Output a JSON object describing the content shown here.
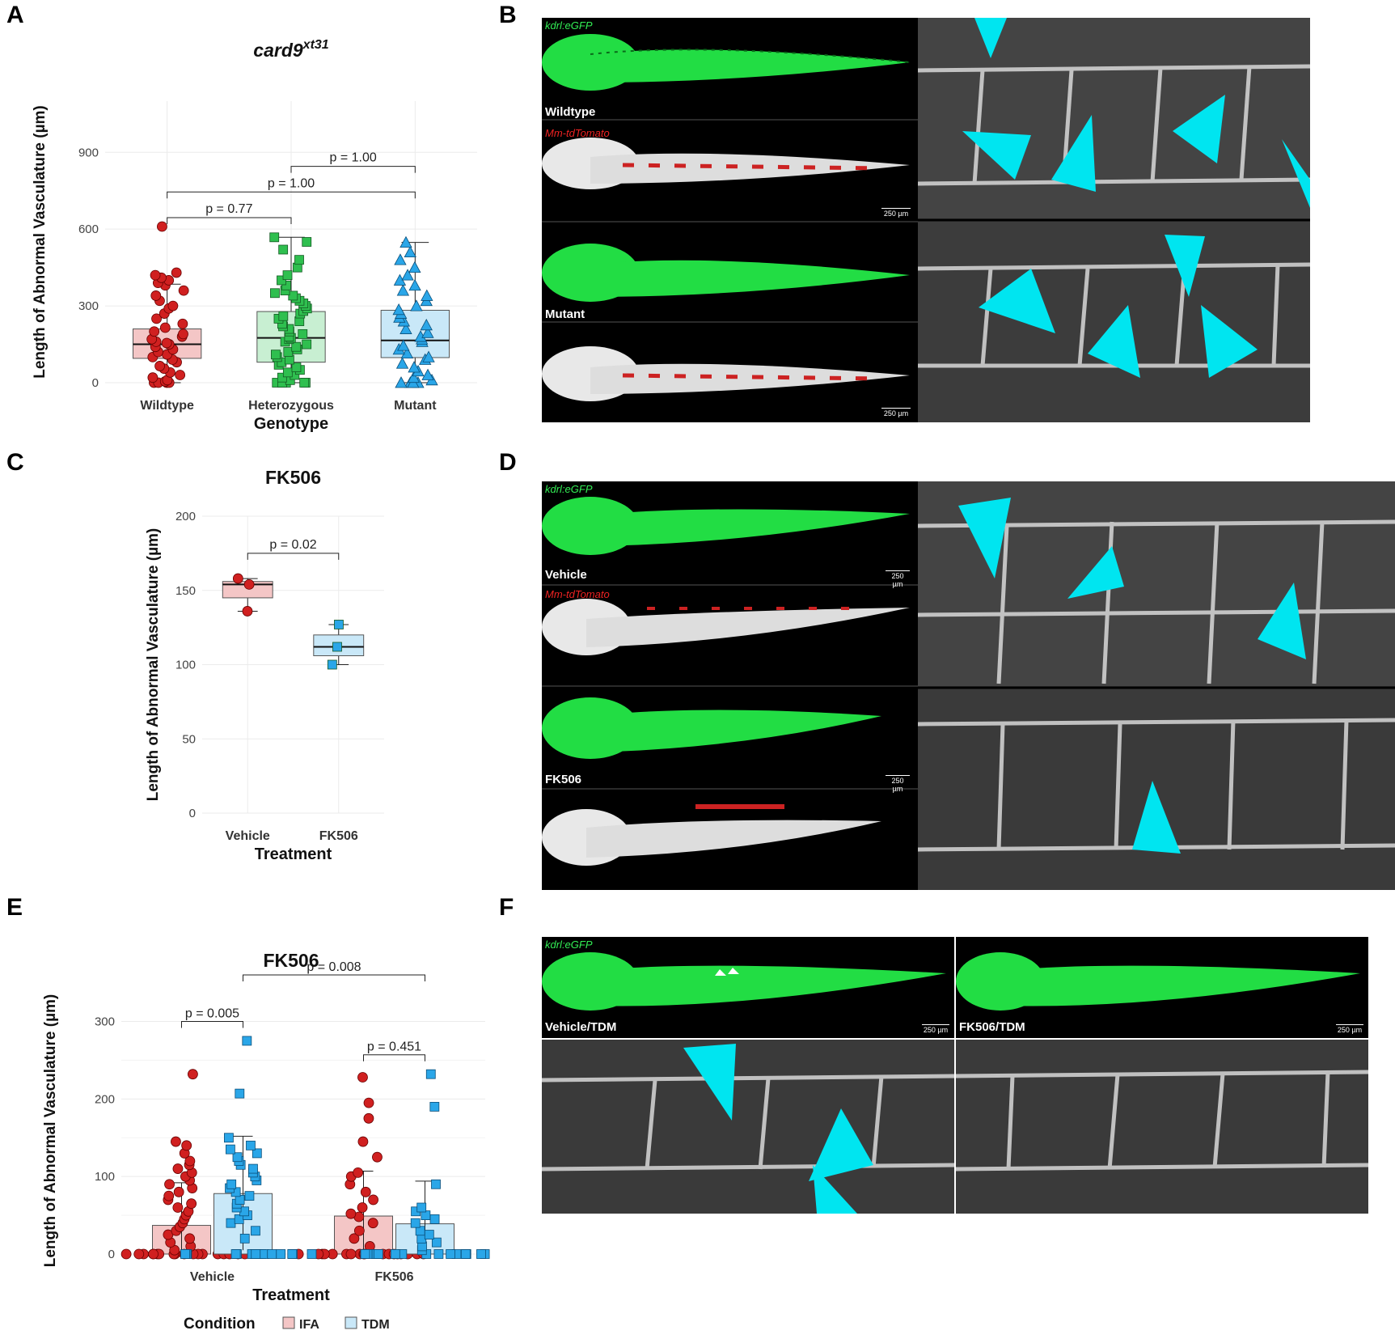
{
  "panels": {
    "A": {
      "letter": "A"
    },
    "B": {
      "letter": "B",
      "green_label": "kdrl:eGFP",
      "red_label": "Mm-tdTomato",
      "wildtype_label": "Wildtype",
      "mutant_label": "Mutant",
      "scale": "250 µm"
    },
    "C": {
      "letter": "C"
    },
    "D": {
      "letter": "D",
      "green_label": "kdrl:eGFP",
      "red_label": "Mm-tdTomato",
      "vehicle_label": "Vehicle",
      "fk506_label": "FK506",
      "scale": "250 µm"
    },
    "E": {
      "letter": "E"
    },
    "F": {
      "letter": "F",
      "green_label": "kdrl:eGFP",
      "vehicle_label": "Vehicle/TDM",
      "fk506_label": "FK506/TDM",
      "scale": "250 µm"
    }
  },
  "colors": {
    "wildtype_fill": "#f4c6c6",
    "het_fill": "#c8efd2",
    "mutant_fill": "#c9e8f8",
    "red_point": "#d02020",
    "green_point": "#2fbf4f",
    "blue_point": "#2aa6e8",
    "arrow": "#00e5f0"
  },
  "chart_data": [
    {
      "type": "box",
      "title": "card9",
      "title_superscript": "xt31",
      "xlabel": "Genotype",
      "ylabel": "Length of Abnormal Vasculature (µm)",
      "categories": [
        "Wildtype",
        "Heterozygous",
        "Mutant"
      ],
      "yticks": [
        0,
        300,
        600,
        900
      ],
      "ylim": [
        0,
        1100
      ],
      "boxes": [
        {
          "q1": 95,
          "median": 150,
          "q3": 210,
          "wlo": 0,
          "whi": 385
        },
        {
          "q1": 80,
          "median": 175,
          "q3": 278,
          "wlo": 0,
          "whi": 568
        },
        {
          "q1": 98,
          "median": 165,
          "q3": 283,
          "wlo": 0,
          "whi": 548
        }
      ],
      "points": [
        [
          0,
          0,
          0,
          0,
          5,
          10,
          20,
          30,
          40,
          55,
          65,
          80,
          90,
          100,
          110,
          120,
          130,
          140,
          150,
          155,
          160,
          170,
          180,
          190,
          200,
          215,
          230,
          250,
          270,
          290,
          300,
          320,
          340,
          360,
          380,
          390,
          400,
          410,
          420,
          430,
          610
        ],
        [
          0,
          0,
          0,
          0,
          0,
          10,
          20,
          30,
          40,
          50,
          60,
          70,
          80,
          90,
          100,
          110,
          120,
          130,
          140,
          150,
          160,
          170,
          175,
          180,
          190,
          200,
          210,
          220,
          230,
          240,
          250,
          260,
          270,
          280,
          290,
          300,
          310,
          320,
          330,
          340,
          350,
          360,
          380,
          400,
          420,
          450,
          480,
          520,
          550,
          568
        ],
        [
          0,
          0,
          0,
          0,
          10,
          20,
          30,
          45,
          60,
          75,
          90,
          100,
          115,
          130,
          145,
          160,
          170,
          180,
          195,
          210,
          225,
          240,
          255,
          270,
          285,
          300,
          320,
          340,
          360,
          380,
          400,
          420,
          450,
          480,
          510,
          548
        ]
      ],
      "comparisons": [
        {
          "label": "p = 0.77",
          "from": 0,
          "to": 1,
          "y": 645
        },
        {
          "label": "p = 1.00",
          "from": 0,
          "to": 2,
          "y": 745
        },
        {
          "label": "p = 1.00",
          "from": 1,
          "to": 2,
          "y": 845
        }
      ]
    },
    {
      "type": "box",
      "title": "FK506",
      "xlabel": "Treatment",
      "ylabel": "Length of Abnormal Vasculature (µm)",
      "categories": [
        "Vehicle",
        "FK506"
      ],
      "yticks": [
        0,
        50,
        100,
        150,
        200
      ],
      "ylim": [
        0,
        200
      ],
      "boxes": [
        {
          "q1": 145,
          "median": 154,
          "q3": 156,
          "wlo": 136,
          "whi": 158
        },
        {
          "q1": 106,
          "median": 112,
          "q3": 120,
          "wlo": 100,
          "whi": 127
        }
      ],
      "points": [
        [
          136,
          154,
          158
        ],
        [
          100,
          112,
          127
        ]
      ],
      "comparisons": [
        {
          "label": "p = 0.02",
          "from": 0,
          "to": 1,
          "y": 175
        }
      ]
    },
    {
      "type": "bar",
      "title": "FK506",
      "xlabel": "Treatment",
      "ylabel": "Length of Abnormal Vasculature (µm)",
      "categories": [
        "Vehicle",
        "FK506"
      ],
      "yticks": [
        0,
        100,
        200,
        300
      ],
      "ylim": [
        0,
        360
      ],
      "legend_title": "Condition",
      "series": [
        {
          "name": "IFA",
          "values": [
            37,
            49
          ],
          "err": [
            [
              0,
              92
            ],
            [
              0,
              107
            ]
          ],
          "points": [
            [
              0,
              0,
              0,
              0,
              0,
              0,
              0,
              0,
              0,
              0,
              0,
              0,
              0,
              0,
              0,
              0,
              0,
              0,
              5,
              10,
              15,
              20,
              25,
              30,
              35,
              40,
              45,
              50,
              55,
              60,
              65,
              70,
              75,
              80,
              85,
              90,
              95,
              100,
              105,
              110,
              115,
              120,
              130,
              140,
              145,
              232
            ],
            [
              0,
              0,
              0,
              0,
              0,
              0,
              0,
              0,
              0,
              0,
              0,
              0,
              0,
              0,
              0,
              0,
              0,
              0,
              10,
              20,
              30,
              40,
              48,
              52,
              60,
              70,
              80,
              90,
              100,
              105,
              125,
              145,
              175,
              195,
              228
            ]
          ]
        },
        {
          "name": "TDM",
          "values": [
            78,
            39
          ],
          "err": [
            [
              5,
              152
            ],
            [
              0,
              94
            ]
          ],
          "points": [
            [
              0,
              0,
              0,
              0,
              0,
              0,
              0,
              0,
              0,
              0,
              0,
              0,
              0,
              0,
              0,
              0,
              20,
              30,
              40,
              45,
              50,
              55,
              60,
              65,
              70,
              75,
              80,
              85,
              90,
              95,
              100,
              105,
              110,
              115,
              120,
              125,
              130,
              135,
              140,
              150,
              207,
              275
            ],
            [
              0,
              0,
              0,
              0,
              0,
              0,
              0,
              0,
              0,
              0,
              0,
              0,
              0,
              0,
              0,
              5,
              10,
              15,
              20,
              25,
              30,
              40,
              45,
              50,
              55,
              60,
              90,
              190,
              232
            ]
          ]
        }
      ],
      "comparisons": [
        {
          "label": "p = 0.005",
          "x1": [
            0,
            0
          ],
          "x2": [
            0,
            1
          ],
          "y": 300
        },
        {
          "label": "p = 0.451",
          "x1": [
            1,
            0
          ],
          "x2": [
            1,
            1
          ],
          "y": 257
        },
        {
          "label": "p = 0.008",
          "x1": [
            0,
            1
          ],
          "x2": [
            1,
            1
          ],
          "y": 360
        }
      ]
    }
  ]
}
